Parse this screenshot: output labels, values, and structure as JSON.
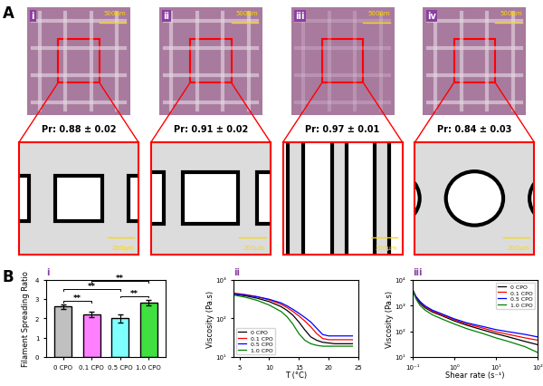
{
  "panel_A": {
    "label": "A",
    "scaffolds": [
      {
        "label": "i",
        "scale_bar": "500μm",
        "pr": "Pr: 0.88 ± 0.02",
        "zoom_scale_bar": "200μm"
      },
      {
        "label": "ii",
        "scale_bar": "500μm",
        "pr": "Pr: 0.91 ± 0.02",
        "zoom_scale_bar": "200μm"
      },
      {
        "label": "iii",
        "scale_bar": "500μm",
        "pr": "Pr: 0.97 ± 0.01",
        "zoom_scale_bar": "200μm"
      },
      {
        "label": "iv",
        "scale_bar": "500μm",
        "pr": "Pr: 0.84 ± 0.03",
        "zoom_scale_bar": "200μm"
      }
    ]
  },
  "panel_B_label": "B",
  "chart_data": [
    {
      "type": "bar",
      "panel_label": "i",
      "y_label": "Filament Spreading Ratio",
      "categories": [
        "0 CPO",
        "0.1 CPO",
        "0.5 CPO",
        "1.0 CPO"
      ],
      "values": [
        2.6,
        2.2,
        2.0,
        2.8
      ],
      "errors": [
        0.1,
        0.15,
        0.2,
        0.15
      ],
      "colors": [
        "#c0c0c0",
        "#ff80ff",
        "#80ffff",
        "#40e040"
      ],
      "ylim": [
        0,
        4
      ],
      "yticks": [
        0,
        1,
        2,
        3,
        4
      ],
      "significance": [
        {
          "pair": [
            0,
            1
          ],
          "label": "**"
        },
        {
          "pair": [
            2,
            3
          ],
          "label": "**"
        },
        {
          "pair": [
            0,
            2
          ],
          "label": "**"
        },
        {
          "pair": [
            1,
            3
          ],
          "label": "**"
        }
      ]
    },
    {
      "type": "line",
      "panel_label": "ii",
      "x_label": "T (°C)",
      "y_label": "Viscosity (Pa.s)",
      "log": "y",
      "x": [
        4,
        6,
        8,
        10,
        12,
        13,
        14,
        15,
        16,
        17,
        18,
        19,
        20,
        21,
        22,
        23,
        24
      ],
      "series": [
        {
          "name": "0 CPO",
          "color": "#000000",
          "values": [
            420,
            380,
            330,
            270,
            200,
            160,
            120,
            80,
            50,
            33,
            27,
            24,
            23,
            22,
            22,
            22,
            22
          ]
        },
        {
          "name": "0.1 CPO",
          "color": "#ff0000",
          "values": [
            450,
            410,
            360,
            300,
            230,
            190,
            150,
            115,
            85,
            60,
            40,
            30,
            28,
            28,
            28,
            28,
            28
          ]
        },
        {
          "name": "0.5 CPO",
          "color": "#0000ff",
          "values": [
            430,
            400,
            360,
            310,
            250,
            210,
            170,
            135,
            105,
            80,
            55,
            38,
            35,
            35,
            35,
            35,
            35
          ]
        },
        {
          "name": "1.0 CPO",
          "color": "#008000",
          "values": [
            400,
            350,
            290,
            220,
            150,
            110,
            70,
            40,
            27,
            22,
            20,
            19,
            19,
            19,
            19,
            19,
            19
          ]
        }
      ],
      "xlim": [
        4,
        25
      ],
      "xticks": [
        5,
        10,
        15,
        20,
        25
      ],
      "ylim": [
        10,
        1000
      ],
      "yticks": [
        {
          "value": 10,
          "label": "10¹"
        },
        {
          "value": 100,
          "label": "10²"
        },
        {
          "value": 1000,
          "label": "10³"
        }
      ],
      "legend": "lower left"
    },
    {
      "type": "line",
      "panel_label": "iii",
      "x_label": "Shear rate (s⁻¹)",
      "y_label": "Viscosity (Pa.s)",
      "log": true,
      "x": [
        0.1,
        0.12,
        0.15,
        0.2,
        0.3,
        0.5,
        1,
        2,
        5,
        10,
        20,
        50,
        100
      ],
      "series": [
        {
          "name": "0 CPO",
          "color": "#000000",
          "values": [
            4000,
            2000,
            1200,
            800,
            550,
            400,
            250,
            170,
            110,
            80,
            60,
            40,
            30
          ]
        },
        {
          "name": "0.1 CPO",
          "color": "#ff0000",
          "values": [
            4000,
            2200,
            1400,
            900,
            600,
            430,
            280,
            190,
            130,
            95,
            75,
            55,
            45
          ]
        },
        {
          "name": "0.5 CPO",
          "color": "#0000ff",
          "values": [
            4000,
            2200,
            1400,
            950,
            650,
            470,
            300,
            210,
            150,
            115,
            95,
            75,
            60
          ]
        },
        {
          "name": "1.0 CPO",
          "color": "#008000",
          "values": [
            4000,
            1800,
            1000,
            650,
            430,
            300,
            190,
            125,
            80,
            55,
            40,
            25,
            15
          ]
        }
      ],
      "xlim": [
        0.1,
        100
      ],
      "xticks": [
        {
          "value": 0.1,
          "label": "10⁻¹"
        },
        {
          "value": 1,
          "label": "10⁰"
        },
        {
          "value": 10,
          "label": "10¹"
        },
        {
          "value": 100,
          "label": "10²"
        }
      ],
      "ylim": [
        10,
        10000
      ],
      "yticks": [
        {
          "value": 10,
          "label": "10¹"
        },
        {
          "value": 100,
          "label": "10²"
        },
        {
          "value": 1000,
          "label": "10³"
        },
        {
          "value": 10000,
          "label": "10⁴"
        }
      ],
      "legend": "upper right"
    }
  ]
}
